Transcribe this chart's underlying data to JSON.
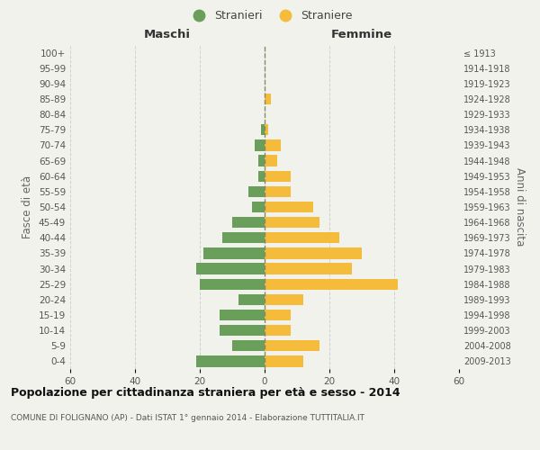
{
  "age_groups": [
    "0-4",
    "5-9",
    "10-14",
    "15-19",
    "20-24",
    "25-29",
    "30-34",
    "35-39",
    "40-44",
    "45-49",
    "50-54",
    "55-59",
    "60-64",
    "65-69",
    "70-74",
    "75-79",
    "80-84",
    "85-89",
    "90-94",
    "95-99",
    "100+"
  ],
  "birth_years": [
    "2009-2013",
    "2004-2008",
    "1999-2003",
    "1994-1998",
    "1989-1993",
    "1984-1988",
    "1979-1983",
    "1974-1978",
    "1969-1973",
    "1964-1968",
    "1959-1963",
    "1954-1958",
    "1949-1953",
    "1944-1948",
    "1939-1943",
    "1934-1938",
    "1929-1933",
    "1924-1928",
    "1919-1923",
    "1914-1918",
    "≤ 1913"
  ],
  "maschi": [
    21,
    10,
    14,
    14,
    8,
    20,
    21,
    19,
    13,
    10,
    4,
    5,
    2,
    2,
    3,
    1,
    0,
    0,
    0,
    0,
    0
  ],
  "femmine": [
    12,
    17,
    8,
    8,
    12,
    41,
    27,
    30,
    23,
    17,
    15,
    8,
    8,
    4,
    5,
    1,
    0,
    2,
    0,
    0,
    0
  ],
  "color_maschi": "#6a9e5b",
  "color_femmine": "#f5bc3c",
  "background_color": "#f2f2ed",
  "grid_color": "#d0d0d0",
  "center_line_color": "#888866",
  "title": "Popolazione per cittadinanza straniera per età e sesso - 2014",
  "subtitle": "COMUNE DI FOLIGNANO (AP) - Dati ISTAT 1° gennaio 2014 - Elaborazione TUTTITALIA.IT",
  "header_left": "Maschi",
  "header_right": "Femmine",
  "ylabel_left": "Fasce di età",
  "ylabel_right": "Anni di nascita",
  "legend_maschi": "Stranieri",
  "legend_femmine": "Straniere",
  "xlim": 60,
  "bar_height": 0.72
}
